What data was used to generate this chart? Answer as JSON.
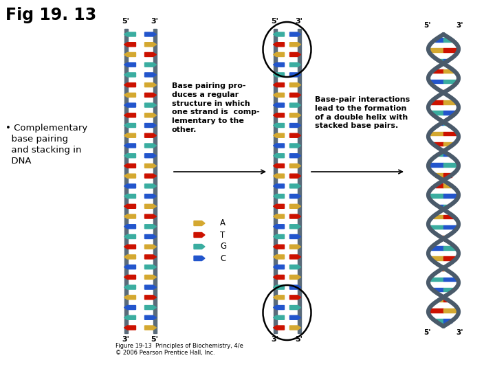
{
  "title": "Fig 19. 13",
  "bullet_line1": "• Complementary",
  "bullet_line2": "  base pairing",
  "bullet_line3": "  and stacking in",
  "bullet_line4": "  DNA",
  "text1": "Base pairing pro-\nduces a regular\nstructure in which\none strand is  comp-\nlementary to the\nother.",
  "text2": "Base-pair interactions\nlead to the formation\nof a double helix with\nstacked base pairs.",
  "caption": "Figure 19-13  Principles of Biochemistry, 4/e\n© 2006 Pearson Prentice Hall, Inc.",
  "legend_labels": [
    "A",
    "T",
    "G",
    "C"
  ],
  "legend_colors": [
    "#D4A830",
    "#CC1100",
    "#3AADA0",
    "#2255CC"
  ],
  "bg_color": "#FFFFFF",
  "strand_color": "#5A6B7A",
  "base_colors": {
    "A": "#D4A830",
    "T": "#CC1100",
    "G": "#3AADA0",
    "C": "#2255CC"
  },
  "sequence": [
    "G",
    "T",
    "A",
    "C",
    "G",
    "T",
    "A",
    "C",
    "T",
    "G",
    "A",
    "C",
    "G",
    "T",
    "A",
    "C",
    "G",
    "T",
    "A",
    "C",
    "G",
    "T",
    "A",
    "C",
    "T",
    "G",
    "A",
    "C",
    "G",
    "T"
  ],
  "fig_width": 7.2,
  "fig_height": 5.4,
  "dpi": 100
}
